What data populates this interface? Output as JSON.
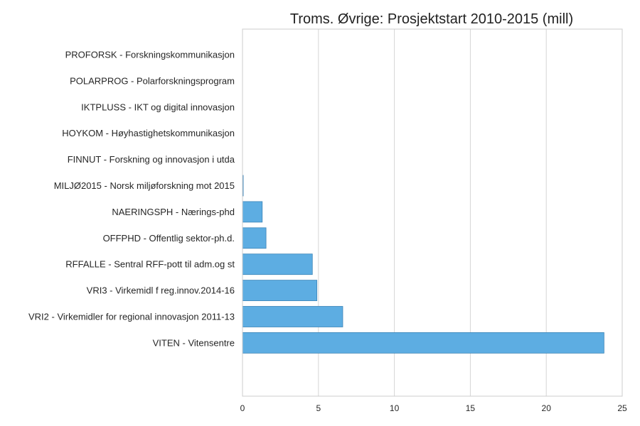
{
  "chart_data": {
    "type": "bar",
    "orientation": "horizontal",
    "title": "Troms. Øvrige: Prosjektstart 2010-2015 (mill)",
    "xlabel": "",
    "ylabel": "",
    "xlim": [
      0,
      25
    ],
    "xticks": [
      0,
      5,
      10,
      15,
      20,
      25
    ],
    "grid": "vertical",
    "bar_color": "#5dade2",
    "categories": [
      "PROFORSK - Forskningskommunikasjon",
      "POLARPROG - Polarforskningsprogram",
      "IKTPLUSS - IKT og digital innovasjon",
      "HOYKOM - Høyhastighetskommunikasjon",
      "FINNUT - Forskning og innovasjon i utda",
      "MILJØ2015 - Norsk miljøforskning mot 2015",
      "NAERINGSPH - Nærings-phd",
      "OFFPHD - Offentlig sektor-ph.d.",
      "RFFALLE - Sentral RFF-pott til adm.og st",
      "VRI3 - Virkemidl f reg.innov.2014-16",
      "VRI2 - Virkemidler for regional innovasjon 2011-13",
      "VITEN - Vitensentre"
    ],
    "values": [
      0,
      0,
      0,
      0,
      0,
      0.05,
      1.3,
      1.55,
      4.6,
      4.9,
      6.6,
      23.8
    ]
  }
}
